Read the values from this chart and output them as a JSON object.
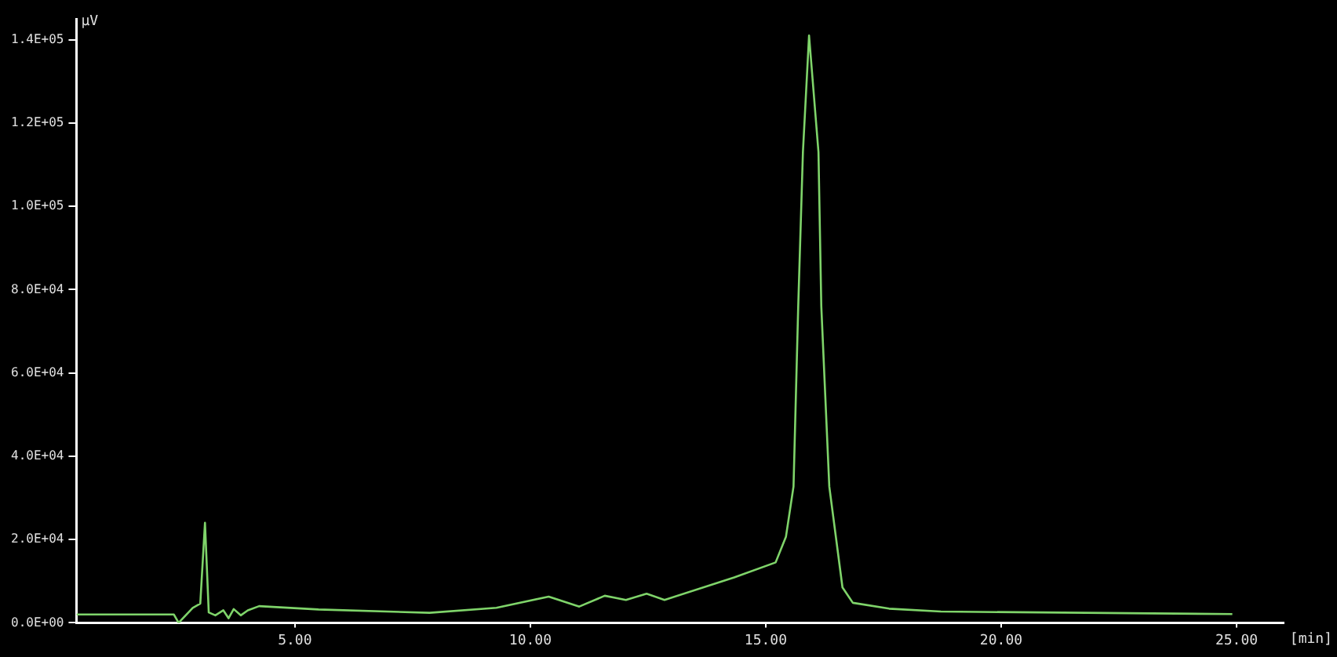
{
  "chart_data": {
    "type": "line",
    "xlabel": "[min]",
    "ylabel": "µV",
    "x": [
      0.36,
      2.43,
      2.53,
      2.83,
      2.99,
      3.09,
      3.17,
      3.31,
      3.48,
      3.59,
      3.7,
      3.85,
      4.0,
      4.24,
      5.5,
      7.86,
      9.28,
      10.39,
      11.04,
      11.58,
      12.03,
      12.47,
      12.85,
      14.33,
      15.21,
      15.43,
      15.59,
      15.69,
      15.79,
      15.92,
      16.12,
      16.18,
      16.35,
      16.63,
      16.85,
      17.62,
      18.72,
      24.91
    ],
    "series": [
      {
        "color": "#7fd46a",
        "values": [
          2000,
          2000,
          0,
          3600,
          4600,
          24000,
          2500,
          1800,
          3000,
          1100,
          3300,
          1800,
          3000,
          4000,
          3200,
          2400,
          3600,
          6300,
          3900,
          6500,
          5500,
          7000,
          5500,
          10900,
          14500,
          20700,
          32700,
          76000,
          113000,
          141000,
          113000,
          76000,
          32700,
          8500,
          4800,
          3400,
          2700,
          2100
        ]
      }
    ],
    "xlim": [
      0.36,
      26
    ],
    "ylim": [
      0,
      145000
    ],
    "xticks": [
      {
        "value": 5,
        "label": "5.00"
      },
      {
        "value": 10,
        "label": "10.00"
      },
      {
        "value": 15,
        "label": "15.00"
      },
      {
        "value": 20,
        "label": "20.00"
      },
      {
        "value": 25,
        "label": "25.00"
      }
    ],
    "yticks": [
      {
        "value": 0,
        "label": "0.0E+00"
      },
      {
        "value": 20000,
        "label": "2.0E+04"
      },
      {
        "value": 40000,
        "label": "4.0E+04"
      },
      {
        "value": 60000,
        "label": "6.0E+04"
      },
      {
        "value": 80000,
        "label": "8.0E+04"
      },
      {
        "value": 100000,
        "label": "1.0E+05"
      },
      {
        "value": 120000,
        "label": "1.2E+05"
      },
      {
        "value": 140000,
        "label": "1.4E+05"
      }
    ],
    "grid": false,
    "legend": false,
    "marker": "none",
    "line_style": "solid"
  }
}
